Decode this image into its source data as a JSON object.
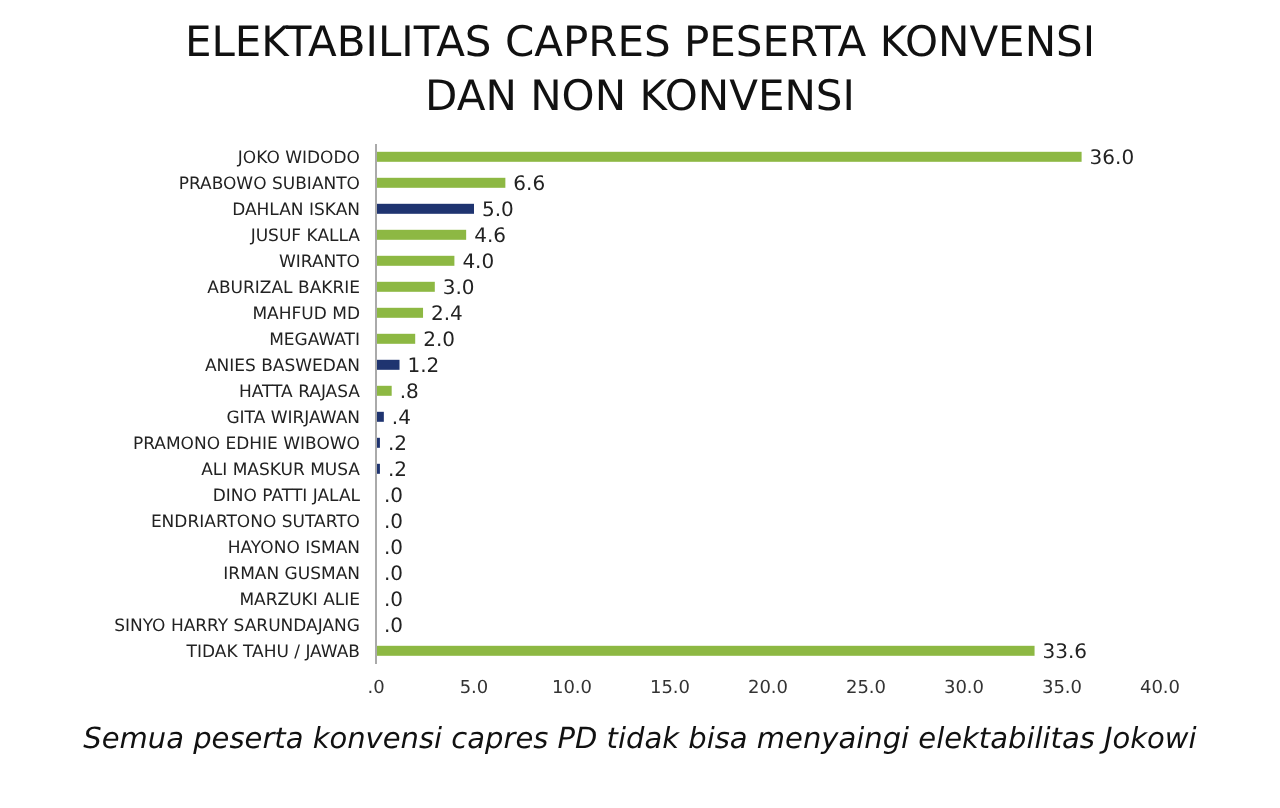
{
  "chart_data": {
    "type": "bar",
    "orientation": "horizontal",
    "title": "ELEKTABILITAS CAPRES PESERTA KONVENSI DAN NON KONVENSI",
    "categories": [
      "JOKO WIDODO",
      "PRABOWO SUBIANTO",
      "DAHLAN ISKAN",
      "JUSUF KALLA",
      "WIRANTO",
      "ABURIZAL BAKRIE",
      "MAHFUD MD",
      "MEGAWATI",
      "ANIES BASWEDAN",
      "HATTA RAJASA",
      "GITA WIRJAWAN",
      "PRAMONO EDHIE WIBOWO",
      "ALI MASKUR MUSA",
      "DINO PATTI JALAL",
      "ENDRIARTONO SUTARTO",
      "HAYONO ISMAN",
      "IRMAN GUSMAN",
      "MARZUKI ALIE",
      "SINYO HARRY SARUNDAJANG",
      "TIDAK TAHU / JAWAB"
    ],
    "values": [
      36.0,
      6.6,
      5.0,
      4.6,
      4.0,
      3.0,
      2.4,
      2.0,
      1.2,
      0.8,
      0.4,
      0.2,
      0.2,
      0,
      0,
      0,
      0,
      0,
      0,
      33.6
    ],
    "value_labels": [
      "36.0",
      "6.6",
      "5.0",
      "4.6",
      "4.0",
      "3.0",
      "2.4",
      "2.0",
      "1.2",
      ".8",
      ".4",
      ".2",
      ".2",
      ".0",
      ".0",
      ".0",
      ".0",
      ".0",
      ".0",
      "33.6"
    ],
    "colors": [
      "#8db843",
      "#8db843",
      "#1f3470",
      "#8db843",
      "#8db843",
      "#8db843",
      "#8db843",
      "#8db843",
      "#1f3470",
      "#8db843",
      "#1f3470",
      "#1f3470",
      "#1f3470",
      "#8db843",
      "#8db843",
      "#8db843",
      "#8db843",
      "#8db843",
      "#8db843",
      "#8db843"
    ],
    "xlim": [
      0,
      40
    ],
    "xticks": [
      {
        "value": 0,
        "label": ".0"
      },
      {
        "value": 5,
        "label": "5.0"
      },
      {
        "value": 10,
        "label": "10.0"
      },
      {
        "value": 15,
        "label": "15.0"
      },
      {
        "value": 20,
        "label": "20.0"
      },
      {
        "value": 25,
        "label": "25.0"
      },
      {
        "value": 30,
        "label": "30.0"
      },
      {
        "value": 35,
        "label": "35.0"
      },
      {
        "value": 40,
        "label": "40.0"
      }
    ],
    "grid": false,
    "legend": false,
    "annotations": [
      "Semua peserta konvensi capres PD tidak bisa menyaingi elektabilitas Jokowi"
    ]
  }
}
